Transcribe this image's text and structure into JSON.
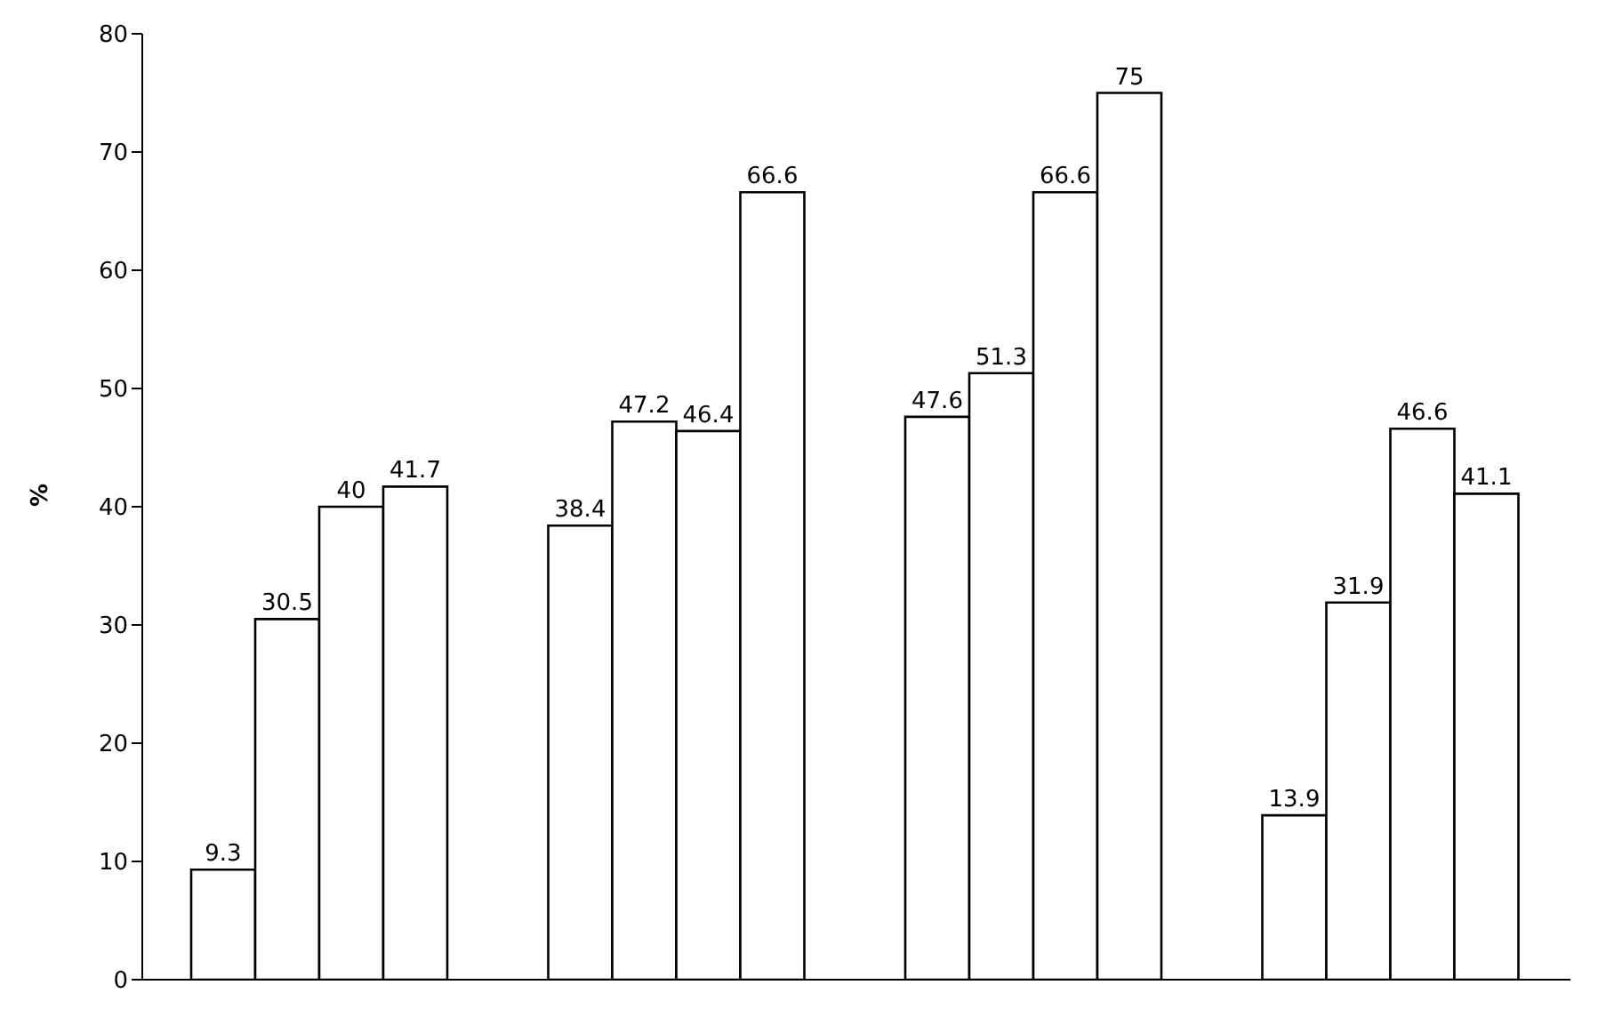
{
  "chart_data": {
    "type": "bar",
    "ylabel": "%",
    "categories": [
      null,
      null,
      null,
      null
    ],
    "series": [
      {
        "color": "#ffffff",
        "values": [
          9.3,
          38.4,
          47.6,
          13.9
        ]
      },
      {
        "color": "#ffffff",
        "values": [
          30.5,
          47.2,
          51.3,
          31.9
        ]
      },
      {
        "color": "#ffffff",
        "values": [
          40,
          46.4,
          66.6,
          46.6
        ]
      },
      {
        "color": "#ffffff",
        "values": [
          41.7,
          66.6,
          75,
          41.1
        ]
      }
    ],
    "ylim": [
      0,
      80
    ],
    "yticks": [
      0,
      10,
      20,
      30,
      40,
      50,
      60,
      70,
      80
    ],
    "data_labels": true,
    "grid": false,
    "legend": false
  }
}
